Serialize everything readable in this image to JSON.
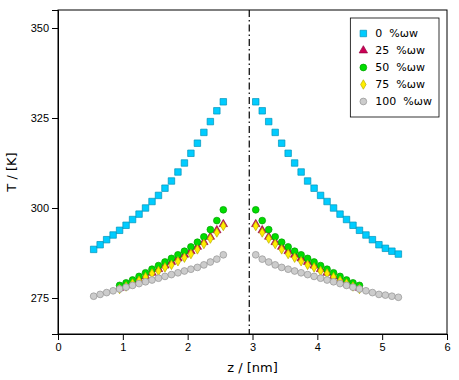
{
  "chart_data": {
    "type": "scatter",
    "xlabel": "z / [nm]",
    "ylabel": "T / [K]",
    "xlim": [
      0,
      6
    ],
    "ylim": [
      265,
      355
    ],
    "xticks": [
      0,
      1,
      2,
      3,
      4,
      5,
      6
    ],
    "yticks": [
      275,
      300,
      325,
      350
    ],
    "legend": "upper right",
    "grid": false,
    "vlines": [
      {
        "x": 2.95,
        "line_style": "dashdot"
      }
    ],
    "series": [
      {
        "name": "0  %ωw",
        "color": "#00ccff",
        "marker": "square",
        "x": [
          0.55,
          0.65,
          0.75,
          0.85,
          0.95,
          1.05,
          1.15,
          1.25,
          1.35,
          1.45,
          1.55,
          1.65,
          1.75,
          1.85,
          1.95,
          2.05,
          2.15,
          2.25,
          2.35,
          2.45,
          2.55,
          3.05,
          3.15,
          3.25,
          3.35,
          3.45,
          3.55,
          3.65,
          3.75,
          3.85,
          3.95,
          4.05,
          4.15,
          4.25,
          4.35,
          4.45,
          4.55,
          4.65,
          4.75,
          4.85,
          4.95,
          5.05,
          5.15,
          5.25
        ],
        "values": [
          288.5,
          289.8,
          291.2,
          292.5,
          293.8,
          295.2,
          296.8,
          298.3,
          300.0,
          301.8,
          303.5,
          305.5,
          307.5,
          310.0,
          312.5,
          315.2,
          318.0,
          321.0,
          324.0,
          327.0,
          329.5,
          329.5,
          327.0,
          324.0,
          321.0,
          318.0,
          315.2,
          312.5,
          310.0,
          307.5,
          305.5,
          303.5,
          301.8,
          300.0,
          298.3,
          296.8,
          295.2,
          293.8,
          292.5,
          291.2,
          289.8,
          288.8,
          288.0,
          287.2
        ]
      },
      {
        "name": "25  %ωw",
        "color": "#cc0055",
        "marker": "triangle",
        "x": [
          0.95,
          1.05,
          1.15,
          1.25,
          1.35,
          1.45,
          1.55,
          1.65,
          1.75,
          1.85,
          1.95,
          2.05,
          2.15,
          2.25,
          2.35,
          2.45,
          2.55,
          3.05,
          3.15,
          3.25,
          3.35,
          3.45,
          3.55,
          3.65,
          3.75,
          3.85,
          3.95,
          4.05,
          4.15,
          4.25,
          4.35,
          4.45,
          4.55,
          4.65
        ],
        "values": [
          277.8,
          278.5,
          279.2,
          280.0,
          281.0,
          282.0,
          283.0,
          284.0,
          285.0,
          286.0,
          287.0,
          288.0,
          289.2,
          290.5,
          292.0,
          293.8,
          295.5,
          295.5,
          293.8,
          292.0,
          290.5,
          289.2,
          288.0,
          287.0,
          286.0,
          285.0,
          284.0,
          283.0,
          282.0,
          281.0,
          280.0,
          279.2,
          278.5,
          277.8
        ]
      },
      {
        "name": "50  %ωw",
        "color": "#00dd00",
        "marker": "circle",
        "x": [
          0.95,
          1.05,
          1.15,
          1.25,
          1.35,
          1.45,
          1.55,
          1.65,
          1.75,
          1.85,
          1.95,
          2.05,
          2.15,
          2.25,
          2.35,
          2.45,
          2.55,
          3.05,
          3.15,
          3.25,
          3.35,
          3.45,
          3.55,
          3.65,
          3.75,
          3.85,
          3.95,
          4.05,
          4.15,
          4.25,
          4.35,
          4.45,
          4.55,
          4.65
        ],
        "values": [
          278.5,
          279.2,
          280.0,
          281.0,
          282.0,
          283.0,
          284.0,
          285.0,
          286.0,
          287.0,
          288.0,
          289.2,
          290.5,
          292.0,
          294.0,
          296.5,
          299.5,
          299.5,
          296.5,
          294.0,
          292.0,
          290.5,
          289.2,
          288.0,
          287.0,
          286.0,
          285.0,
          284.0,
          283.0,
          282.0,
          281.0,
          280.0,
          279.2,
          278.5
        ]
      },
      {
        "name": "75  %ωw",
        "color": "#ffee00",
        "marker": "diamond",
        "x": [
          0.95,
          1.05,
          1.15,
          1.25,
          1.35,
          1.45,
          1.55,
          1.65,
          1.75,
          1.85,
          1.95,
          2.05,
          2.15,
          2.25,
          2.35,
          2.45,
          2.55,
          3.05,
          3.15,
          3.25,
          3.35,
          3.45,
          3.55,
          3.65,
          3.75,
          3.85,
          3.95,
          4.05,
          4.15,
          4.25,
          4.35,
          4.45,
          4.55,
          4.65
        ],
        "values": [
          277.5,
          278.2,
          279.0,
          279.8,
          280.8,
          281.8,
          282.5,
          283.5,
          284.2,
          285.2,
          286.2,
          287.2,
          288.5,
          290.0,
          291.5,
          293.2,
          295.0,
          295.0,
          293.2,
          291.5,
          290.0,
          288.5,
          287.2,
          286.2,
          285.2,
          284.2,
          283.5,
          282.5,
          281.8,
          280.8,
          279.8,
          279.0,
          278.2,
          277.5
        ]
      },
      {
        "name": "100  %ωw",
        "color": "#cccccc",
        "marker": "circle",
        "x": [
          0.55,
          0.65,
          0.75,
          0.85,
          0.95,
          1.05,
          1.15,
          1.25,
          1.35,
          1.45,
          1.55,
          1.65,
          1.75,
          1.85,
          1.95,
          2.05,
          2.15,
          2.25,
          2.35,
          2.45,
          2.55,
          3.05,
          3.15,
          3.25,
          3.35,
          3.45,
          3.55,
          3.65,
          3.75,
          3.85,
          3.95,
          4.05,
          4.15,
          4.25,
          4.35,
          4.45,
          4.55,
          4.65,
          4.75,
          4.85,
          4.95,
          5.05,
          5.15,
          5.25
        ],
        "values": [
          275.5,
          276.0,
          276.5,
          277.0,
          277.5,
          278.0,
          278.5,
          279.0,
          279.5,
          280.0,
          280.5,
          281.0,
          281.5,
          282.0,
          282.5,
          283.0,
          283.5,
          284.2,
          285.0,
          285.8,
          287.0,
          287.0,
          285.8,
          285.0,
          284.2,
          283.5,
          283.0,
          282.5,
          282.0,
          281.5,
          281.0,
          280.5,
          280.0,
          279.5,
          279.0,
          278.5,
          278.0,
          277.5,
          277.0,
          276.5,
          276.0,
          275.8,
          275.5,
          275.2
        ]
      }
    ]
  }
}
